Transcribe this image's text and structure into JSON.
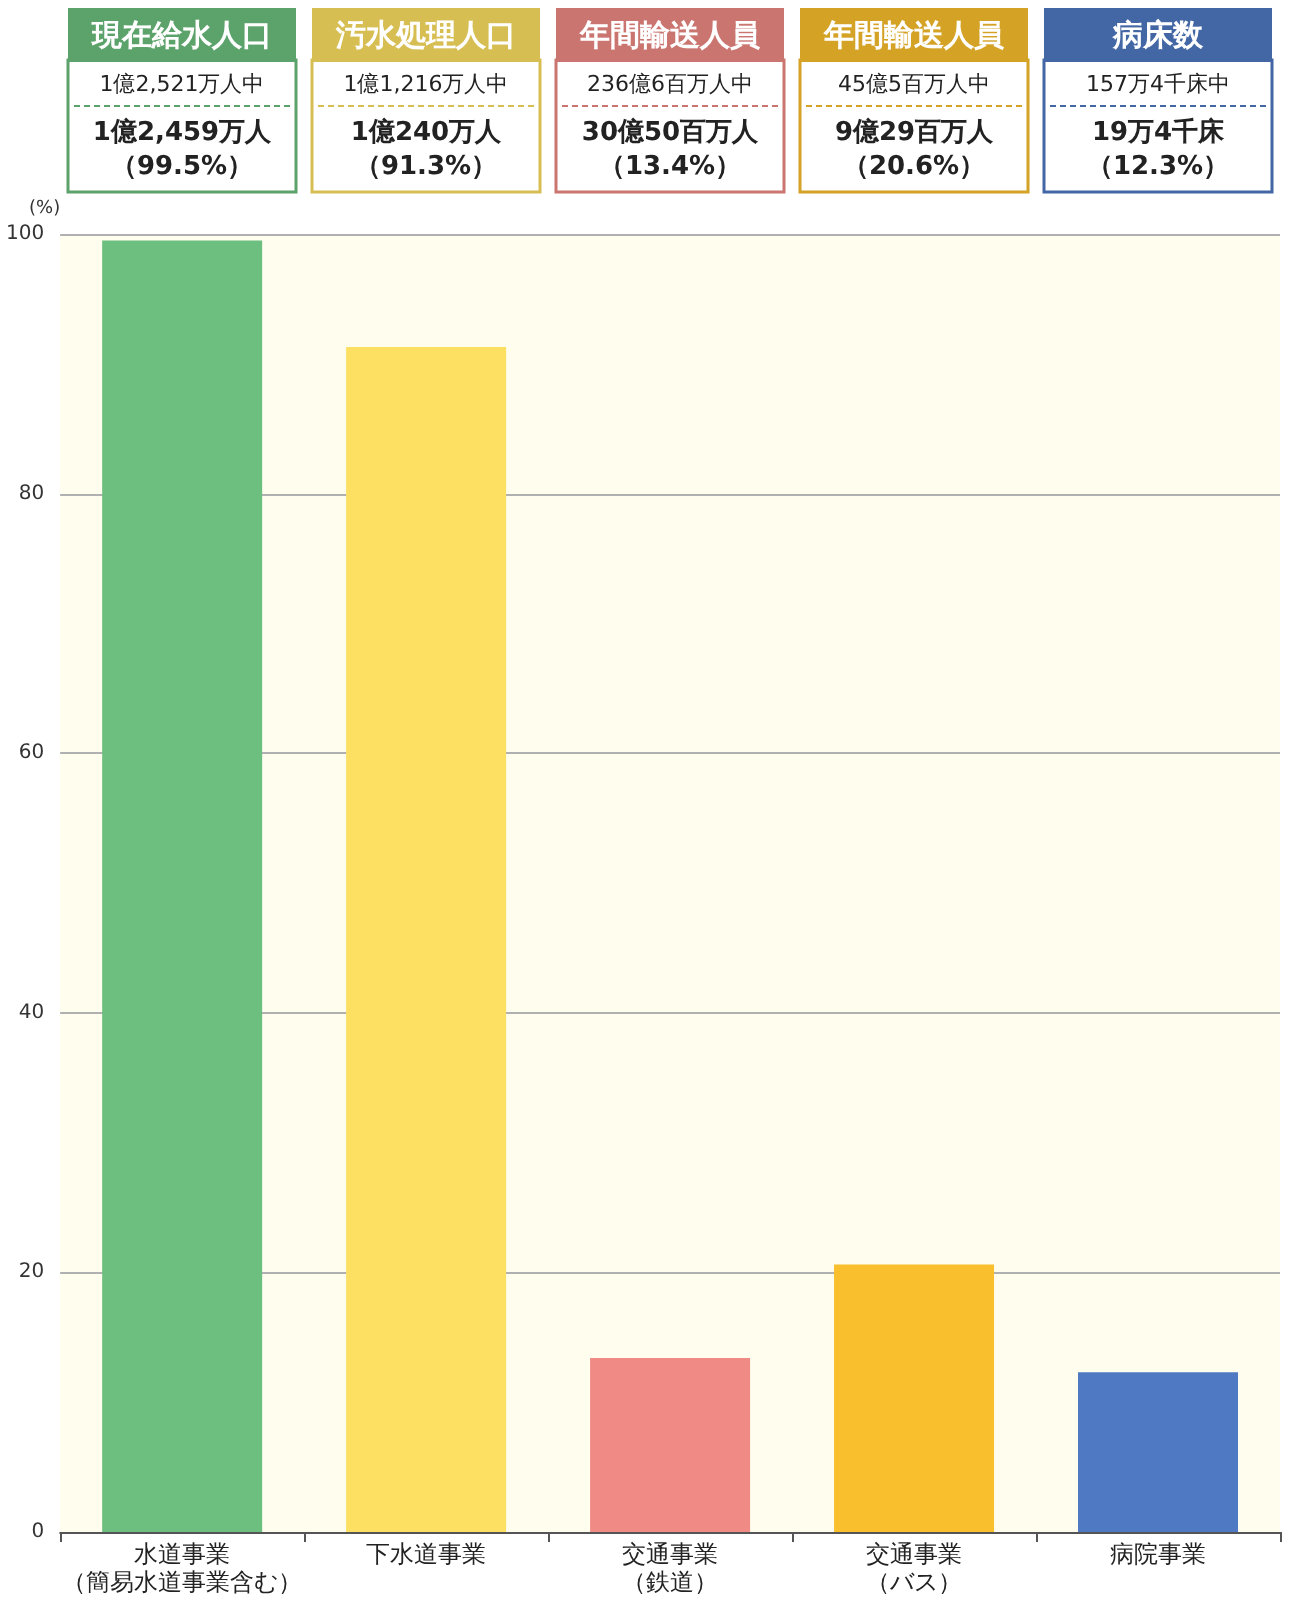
{
  "chart_data": {
    "type": "bar",
    "ylabel": "(%)",
    "categories": [
      "水道事業（簡易水道事業含む）",
      "下水道事業",
      "交通事業（鉄道）",
      "交通事業（バス）",
      "病院事業"
    ],
    "values": [
      99.5,
      91.3,
      13.4,
      20.6,
      12.3
    ],
    "colors": [
      "#6cbf7e",
      "#fde062",
      "#ef8a84",
      "#f9bf2c",
      "#4f79c2"
    ],
    "value_labels": [
      "1億2,459万人（99.5%）",
      "1億240万人（91.3%）",
      "30億50百万人（13.4%）",
      "9億29百万人（20.6%）",
      "19万4千床（12.3%）"
    ],
    "annotations": [
      "現在給水人口",
      "1億2,521万人中",
      "汚水処理人口",
      "1億1,216万人中",
      "年間輸送人員",
      "236億6百万人中",
      "年間輸送人員",
      "45億5百万人中",
      "病床数",
      "157万4千床中"
    ],
    "ylim": [
      0,
      100
    ],
    "yticks": [
      0,
      20,
      40,
      60,
      80,
      100
    ],
    "grid": "y"
  }
}
